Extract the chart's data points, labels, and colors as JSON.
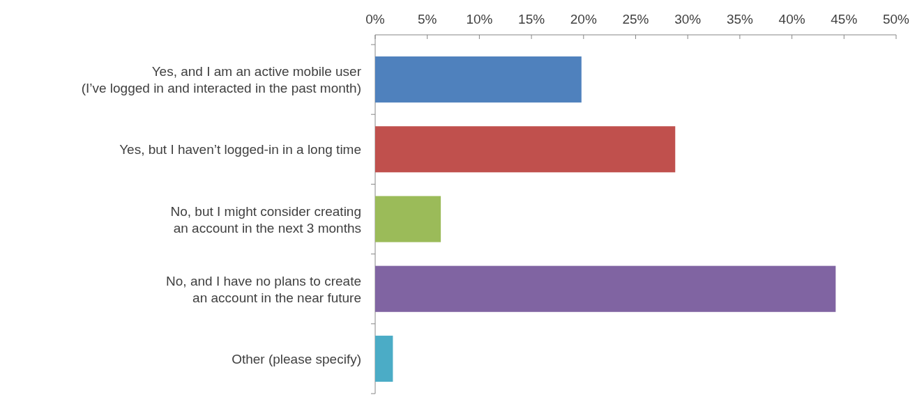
{
  "chart_data": {
    "type": "bar",
    "orientation": "horizontal",
    "categories": [
      "Yes, and I am an active mobile user\n(I’ve logged in and interacted in the past month)",
      "Yes, but I haven’t logged-in in a long time",
      "No, but I might consider creating\nan account in the next 3 months",
      "No, and I have no plans to create\nan account in the near future",
      "Other (please specify)"
    ],
    "values": [
      19.8,
      28.8,
      6.3,
      44.2,
      1.7
    ],
    "colors": [
      "#4f81bd",
      "#c0504d",
      "#9bbb59",
      "#8064a2",
      "#4bacc6"
    ],
    "xlim": [
      0,
      50
    ],
    "xticks": [
      {
        "value": 0,
        "label": "0%"
      },
      {
        "value": 5,
        "label": "5%"
      },
      {
        "value": 10,
        "label": "10%"
      },
      {
        "value": 15,
        "label": "15%"
      },
      {
        "value": 20,
        "label": "20%"
      },
      {
        "value": 25,
        "label": "25%"
      },
      {
        "value": 30,
        "label": "30%"
      },
      {
        "value": 35,
        "label": "35%"
      },
      {
        "value": 40,
        "label": "40%"
      },
      {
        "value": 45,
        "label": "45%"
      },
      {
        "value": 50,
        "label": "50%"
      }
    ],
    "grid": false
  }
}
